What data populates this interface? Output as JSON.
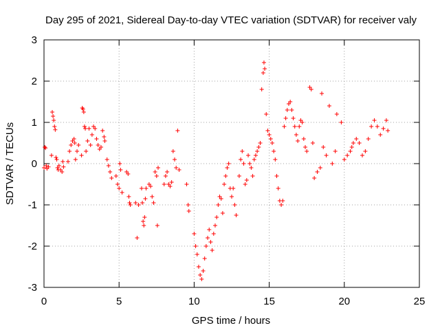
{
  "chart_data": {
    "type": "scatter",
    "title": "Day 295 of 2021, Sidereal Day-to-day VTEC variation (SDTVAR) for receiver valy",
    "xlabel": "GPS time / hours",
    "ylabel": "SDTVAR / TECUs",
    "xlim": [
      0,
      25
    ],
    "ylim": [
      -3,
      3
    ],
    "xticks": [
      "0",
      "5",
      "10",
      "15",
      "20",
      "25"
    ],
    "yticks": [
      "-3",
      "-2",
      "-1",
      "0",
      "1",
      "2",
      "3"
    ],
    "grid": true,
    "marker": "+",
    "color": "#ff0000",
    "series": [
      {
        "name": "SDTVAR",
        "points": [
          [
            0.0,
            -0.1
          ],
          [
            0.05,
            0.4
          ],
          [
            0.1,
            0.38
          ],
          [
            0.15,
            -0.05
          ],
          [
            0.2,
            -0.12
          ],
          [
            0.3,
            -0.08
          ],
          [
            0.5,
            0.2
          ],
          [
            0.55,
            1.25
          ],
          [
            0.6,
            1.15
          ],
          [
            0.65,
            1.05
          ],
          [
            0.7,
            0.9
          ],
          [
            0.75,
            0.82
          ],
          [
            0.8,
            0.15
          ],
          [
            0.85,
            0.1
          ],
          [
            0.9,
            -0.1
          ],
          [
            0.95,
            -0.15
          ],
          [
            1.0,
            -0.05
          ],
          [
            1.1,
            -0.15
          ],
          [
            1.2,
            -0.2
          ],
          [
            1.25,
            0.05
          ],
          [
            1.3,
            -0.08
          ],
          [
            1.6,
            0.05
          ],
          [
            1.7,
            0.3
          ],
          [
            1.8,
            0.45
          ],
          [
            1.9,
            0.55
          ],
          [
            2.0,
            0.6
          ],
          [
            2.05,
            0.5
          ],
          [
            2.1,
            0.1
          ],
          [
            2.2,
            0.3
          ],
          [
            2.3,
            0.45
          ],
          [
            2.5,
            0.2
          ],
          [
            2.55,
            1.35
          ],
          [
            2.6,
            1.32
          ],
          [
            2.65,
            1.25
          ],
          [
            2.7,
            0.9
          ],
          [
            2.75,
            0.85
          ],
          [
            2.8,
            0.3
          ],
          [
            2.9,
            0.55
          ],
          [
            3.0,
            0.85
          ],
          [
            3.1,
            0.45
          ],
          [
            3.2,
            0.7
          ],
          [
            3.3,
            0.9
          ],
          [
            3.4,
            0.85
          ],
          [
            3.5,
            0.6
          ],
          [
            3.6,
            0.45
          ],
          [
            3.7,
            0.35
          ],
          [
            3.8,
            0.4
          ],
          [
            3.9,
            0.8
          ],
          [
            4.0,
            0.65
          ],
          [
            4.05,
            0.55
          ],
          [
            4.2,
            0.1
          ],
          [
            4.3,
            -0.05
          ],
          [
            4.4,
            -0.2
          ],
          [
            4.5,
            -0.35
          ],
          [
            4.8,
            -0.3
          ],
          [
            4.9,
            -0.5
          ],
          [
            5.0,
            -0.6
          ],
          [
            5.05,
            0.0
          ],
          [
            5.1,
            -0.15
          ],
          [
            5.2,
            -0.7
          ],
          [
            5.5,
            -0.2
          ],
          [
            5.6,
            -0.25
          ],
          [
            5.65,
            -0.8
          ],
          [
            5.7,
            -0.95
          ],
          [
            5.75,
            -1.0
          ],
          [
            6.1,
            -0.95
          ],
          [
            6.2,
            -1.8
          ],
          [
            6.3,
            -1.0
          ],
          [
            6.5,
            -0.6
          ],
          [
            6.55,
            -0.95
          ],
          [
            6.6,
            -1.4
          ],
          [
            6.65,
            -1.5
          ],
          [
            6.7,
            -1.3
          ],
          [
            6.75,
            -0.85
          ],
          [
            6.8,
            -0.6
          ],
          [
            7.0,
            -0.5
          ],
          [
            7.1,
            -0.55
          ],
          [
            7.2,
            -0.8
          ],
          [
            7.3,
            -0.95
          ],
          [
            7.4,
            -0.2
          ],
          [
            7.5,
            -0.3
          ],
          [
            7.55,
            -1.5
          ],
          [
            7.6,
            -0.1
          ],
          [
            8.0,
            -0.5
          ],
          [
            8.1,
            -0.3
          ],
          [
            8.2,
            -0.2
          ],
          [
            8.3,
            -0.5
          ],
          [
            8.4,
            -0.55
          ],
          [
            8.5,
            -0.45
          ],
          [
            8.6,
            0.3
          ],
          [
            8.7,
            0.1
          ],
          [
            8.8,
            -0.1
          ],
          [
            8.9,
            0.8
          ],
          [
            9.0,
            -0.15
          ],
          [
            9.5,
            -0.5
          ],
          [
            9.6,
            -1.0
          ],
          [
            9.65,
            -1.15
          ],
          [
            10.0,
            -1.7
          ],
          [
            10.1,
            -2.0
          ],
          [
            10.2,
            -2.2
          ],
          [
            10.3,
            -2.5
          ],
          [
            10.4,
            -2.7
          ],
          [
            10.5,
            -2.8
          ],
          [
            10.6,
            -2.6
          ],
          [
            10.7,
            -2.3
          ],
          [
            10.8,
            -2.0
          ],
          [
            10.9,
            -1.8
          ],
          [
            11.0,
            -1.6
          ],
          [
            11.1,
            -1.9
          ],
          [
            11.2,
            -2.1
          ],
          [
            11.3,
            -1.7
          ],
          [
            11.4,
            -1.5
          ],
          [
            11.5,
            -1.3
          ],
          [
            11.6,
            -1.0
          ],
          [
            11.7,
            -0.8
          ],
          [
            11.8,
            -0.85
          ],
          [
            11.9,
            -1.2
          ],
          [
            12.0,
            -0.5
          ],
          [
            12.1,
            -0.3
          ],
          [
            12.2,
            -0.1
          ],
          [
            12.3,
            0.0
          ],
          [
            12.4,
            -0.6
          ],
          [
            12.5,
            -0.8
          ],
          [
            12.6,
            -0.6
          ],
          [
            12.7,
            -1.0
          ],
          [
            12.8,
            -1.25
          ],
          [
            13.0,
            -0.3
          ],
          [
            13.1,
            0.1
          ],
          [
            13.2,
            0.3
          ],
          [
            13.3,
            0.0
          ],
          [
            13.4,
            -0.5
          ],
          [
            13.5,
            -0.4
          ],
          [
            13.6,
            0.2
          ],
          [
            13.7,
            0.0
          ],
          [
            13.8,
            -0.1
          ],
          [
            13.9,
            -0.3
          ],
          [
            14.0,
            0.1
          ],
          [
            14.1,
            0.2
          ],
          [
            14.2,
            0.3
          ],
          [
            14.3,
            0.4
          ],
          [
            14.4,
            0.5
          ],
          [
            14.5,
            1.8
          ],
          [
            14.6,
            2.2
          ],
          [
            14.65,
            2.45
          ],
          [
            14.7,
            2.3
          ],
          [
            14.8,
            1.2
          ],
          [
            14.9,
            0.8
          ],
          [
            15.0,
            0.7
          ],
          [
            15.1,
            0.6
          ],
          [
            15.2,
            0.5
          ],
          [
            15.3,
            0.3
          ],
          [
            15.4,
            0.1
          ],
          [
            15.5,
            -0.3
          ],
          [
            15.6,
            -0.6
          ],
          [
            15.7,
            -0.9
          ],
          [
            15.8,
            -1.0
          ],
          [
            15.9,
            -0.9
          ],
          [
            16.0,
            0.9
          ],
          [
            16.1,
            1.1
          ],
          [
            16.2,
            1.3
          ],
          [
            16.3,
            1.45
          ],
          [
            16.4,
            1.5
          ],
          [
            16.5,
            1.3
          ],
          [
            16.6,
            1.1
          ],
          [
            16.7,
            0.9
          ],
          [
            16.8,
            0.7
          ],
          [
            16.9,
            0.55
          ],
          [
            17.0,
            0.9
          ],
          [
            17.1,
            1.05
          ],
          [
            17.2,
            1.0
          ],
          [
            17.3,
            0.6
          ],
          [
            17.4,
            0.4
          ],
          [
            17.5,
            0.3
          ],
          [
            17.7,
            1.85
          ],
          [
            17.8,
            1.8
          ],
          [
            17.9,
            0.5
          ],
          [
            18.0,
            -0.35
          ],
          [
            18.2,
            -0.2
          ],
          [
            18.4,
            -0.1
          ],
          [
            18.5,
            1.7
          ],
          [
            18.6,
            0.4
          ],
          [
            18.8,
            0.2
          ],
          [
            19.0,
            1.4
          ],
          [
            19.2,
            0.0
          ],
          [
            19.4,
            0.3
          ],
          [
            19.5,
            1.2
          ],
          [
            19.8,
            1.0
          ],
          [
            20.0,
            0.1
          ],
          [
            20.2,
            0.2
          ],
          [
            20.4,
            0.3
          ],
          [
            20.5,
            0.4
          ],
          [
            20.6,
            0.5
          ],
          [
            20.8,
            0.6
          ],
          [
            21.0,
            0.5
          ],
          [
            21.2,
            0.2
          ],
          [
            21.4,
            0.3
          ],
          [
            21.6,
            0.6
          ],
          [
            21.8,
            0.9
          ],
          [
            22.0,
            1.05
          ],
          [
            22.2,
            0.9
          ],
          [
            22.4,
            0.7
          ],
          [
            22.6,
            0.85
          ],
          [
            22.8,
            1.05
          ],
          [
            22.9,
            0.8
          ]
        ]
      }
    ]
  }
}
